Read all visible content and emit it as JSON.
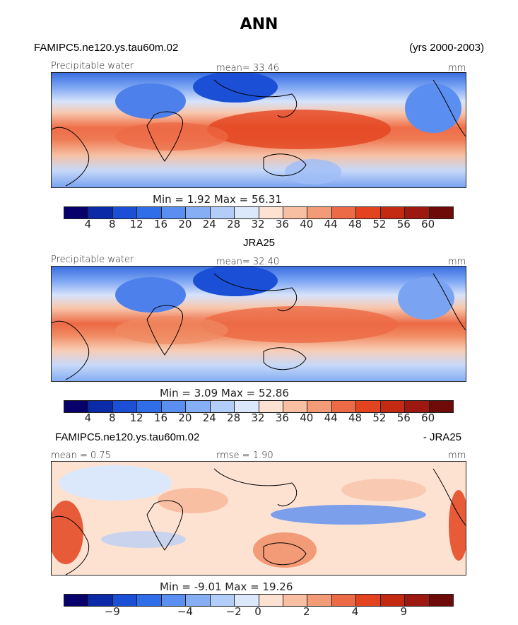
{
  "title": "ANN",
  "panel1": {
    "case_name": "FAMIPC5.ne120.ys.tau60m.02",
    "years": "(yrs 2000-2003)",
    "variable": "Precipitable water",
    "mean": "mean=   33.46",
    "units": "mm",
    "minmax": "Min =     1.92  Max =    56.31"
  },
  "panel2": {
    "case_name": "JRA25",
    "variable": "Precipitable water",
    "mean": "mean=   32.40",
    "units": "mm",
    "minmax": "Min =     3.09  Max =   52.86"
  },
  "panel3": {
    "case_name": "FAMIPC5.ne120.ys.tau60m.02",
    "diff_label": "- JRA25",
    "mean": "mean =    0.75",
    "rmse": "rmse =    1.90",
    "units": "mm",
    "minmax": "Min =   -9.01  Max =   19.26"
  },
  "colorbar_abs": {
    "labels": [
      "4",
      "8",
      "12",
      "16",
      "20",
      "24",
      "28",
      "32",
      "36",
      "40",
      "44",
      "48",
      "52",
      "56",
      "60"
    ],
    "colors": [
      "#08006b",
      "#0b2aa8",
      "#1a4fd6",
      "#2f6ee8",
      "#5a8ef0",
      "#86aef5",
      "#b2cdf8",
      "#dbe7fb",
      "#fde2d2",
      "#f8bfa3",
      "#f39a76",
      "#ec6a45",
      "#e3431f",
      "#c42a12",
      "#9c1810",
      "#6e0a08"
    ]
  },
  "colorbar_diff": {
    "labels": [
      "−9",
      "−4",
      "−2",
      "0",
      "2",
      "4",
      "9"
    ],
    "colors": [
      "#08006b",
      "#0b2aa8",
      "#1a4fd6",
      "#2f6ee8",
      "#5a8ef0",
      "#86aef5",
      "#b2cdf8",
      "#dbe7fb",
      "#fde2d2",
      "#f8bfa3",
      "#f39a76",
      "#ec6a45",
      "#e3431f",
      "#c42a12",
      "#9c1810",
      "#6e0a08"
    ]
  }
}
